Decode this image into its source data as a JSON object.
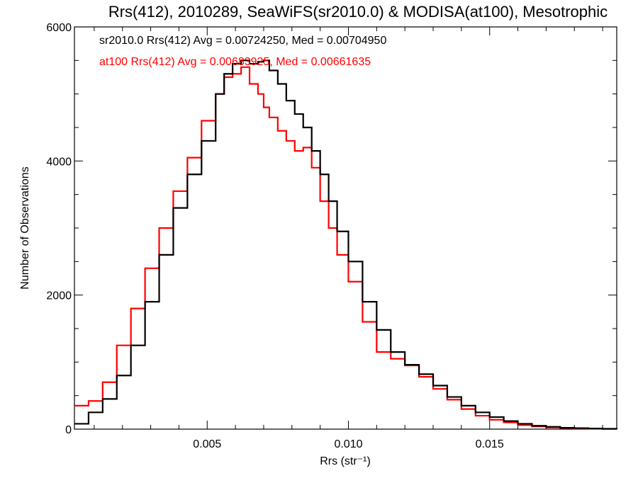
{
  "chart_data": {
    "type": "line",
    "title": "Rrs(412), 2010289, SeaWiFS(sr2010.0) & MODISA(at100), Mesotrophic",
    "xlabel": "Rrs (str⁻¹)",
    "ylabel": "Number of Observations",
    "xlim": [
      0.0003,
      0.0195
    ],
    "ylim": [
      0,
      6000
    ],
    "xticks": [
      0.005,
      0.01,
      0.015
    ],
    "xtick_labels": [
      "0.005",
      "0.010",
      "0.015"
    ],
    "yticks": [
      0,
      2000,
      4000,
      6000
    ],
    "ytick_labels": [
      "0",
      "2000",
      "4000",
      "6000"
    ],
    "grid": false,
    "step": true,
    "legend": [
      "sr2010.0 Rrs(412) Avg = 0.00724250, Med = 0.00704950",
      "at100 Rrs(412) Avg = 0.00683925, Med = 0.00661635"
    ],
    "series": [
      {
        "color": "#000000",
        "x": [
          0.0003,
          0.0008,
          0.0013,
          0.0018,
          0.0023,
          0.0028,
          0.0033,
          0.0038,
          0.0043,
          0.0048,
          0.0053,
          0.0056,
          0.0059,
          0.0062,
          0.0065,
          0.0068,
          0.007,
          0.0072,
          0.0075,
          0.0078,
          0.0081,
          0.0084,
          0.0087,
          0.009,
          0.0093,
          0.0096,
          0.01,
          0.0105,
          0.011,
          0.0115,
          0.012,
          0.0125,
          0.013,
          0.0135,
          0.014,
          0.0145,
          0.015,
          0.0155,
          0.016,
          0.0165,
          0.017,
          0.0175,
          0.018,
          0.0185,
          0.019,
          0.0195
        ],
        "y": [
          80,
          250,
          450,
          800,
          1250,
          1900,
          2600,
          3300,
          3800,
          4300,
          5000,
          5300,
          5450,
          5500,
          5450,
          5480,
          5500,
          5350,
          5150,
          4900,
          4700,
          4500,
          4150,
          3800,
          3400,
          2950,
          2500,
          1900,
          1480,
          1150,
          960,
          820,
          650,
          480,
          350,
          250,
          180,
          120,
          80,
          50,
          35,
          20,
          15,
          10,
          5,
          3
        ]
      },
      {
        "color": "#ff0000",
        "x": [
          0.0003,
          0.0008,
          0.0013,
          0.0018,
          0.0023,
          0.0028,
          0.0033,
          0.0038,
          0.0043,
          0.0048,
          0.0053,
          0.0056,
          0.0059,
          0.0062,
          0.0065,
          0.0068,
          0.007,
          0.0072,
          0.0075,
          0.0078,
          0.0081,
          0.0084,
          0.0087,
          0.009,
          0.0093,
          0.0096,
          0.01,
          0.0105,
          0.011,
          0.0115,
          0.012,
          0.0125,
          0.013,
          0.0135,
          0.014,
          0.0145,
          0.015,
          0.0155,
          0.016,
          0.0165,
          0.017,
          0.0175,
          0.018,
          0.0185,
          0.019,
          0.0195
        ],
        "y": [
          350,
          420,
          700,
          1250,
          1800,
          2400,
          3000,
          3550,
          4050,
          4600,
          5000,
          5250,
          5300,
          5400,
          5150,
          5000,
          4800,
          4650,
          4450,
          4300,
          4150,
          4200,
          3900,
          3400,
          3000,
          2600,
          2200,
          1600,
          1150,
          1050,
          950,
          780,
          600,
          440,
          300,
          200,
          140,
          100,
          60,
          40,
          25,
          15,
          10,
          6,
          4,
          2
        ]
      }
    ]
  }
}
